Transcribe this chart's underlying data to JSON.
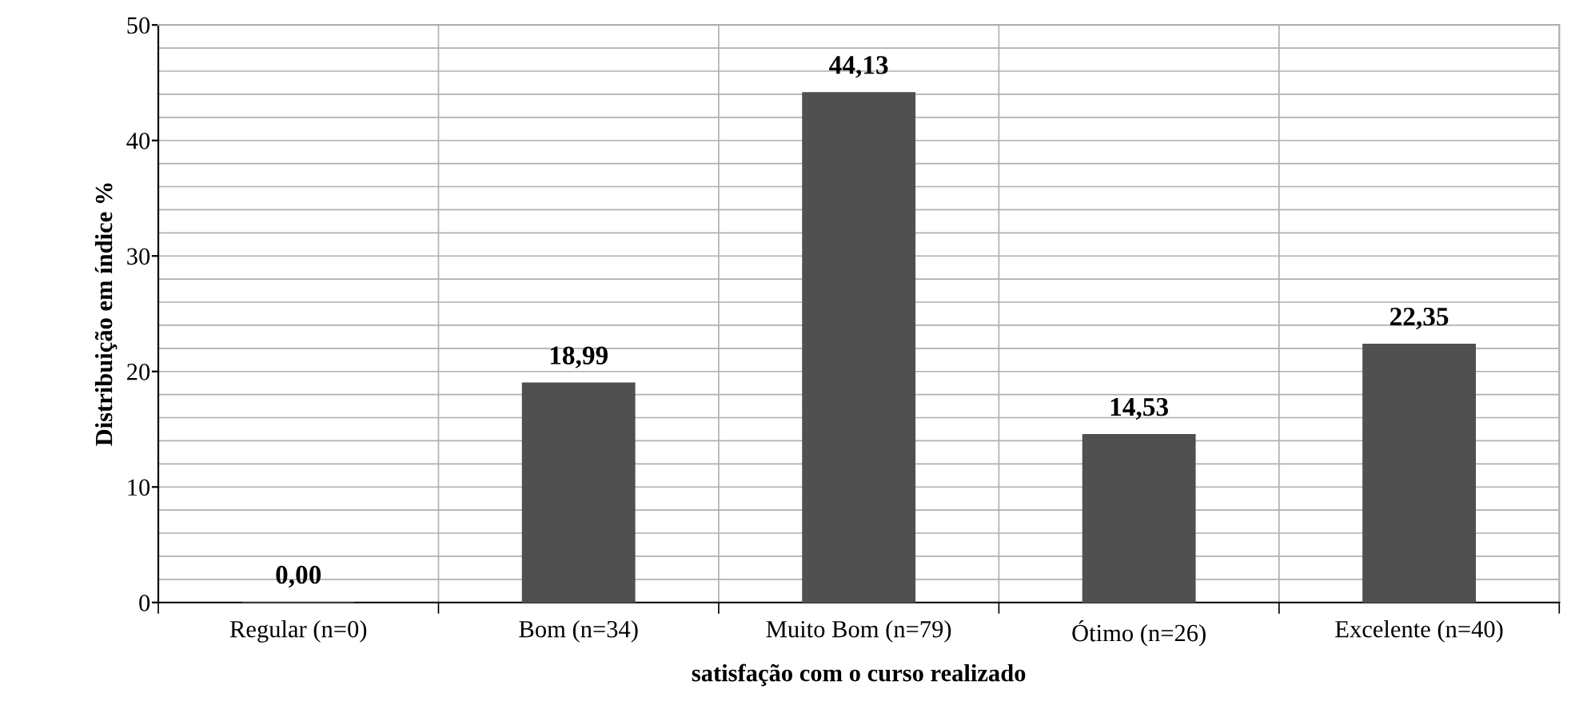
{
  "chart_data": {
    "type": "bar",
    "categories": [
      "Regular (n=0)",
      "Bom (n=34)",
      "Muito Bom (n=79)",
      "Ótimo (n=26)",
      "Excelente (n=40)"
    ],
    "values": [
      0.0,
      18.99,
      44.13,
      14.53,
      22.35
    ],
    "value_labels": [
      "0,00",
      "18,99",
      "44,13",
      "14,53",
      "22,35"
    ],
    "color": "#505050",
    "xlabel": "satisfação com o curso realizado",
    "ylabel": "Distribuição em índice %",
    "ylim": [
      0,
      50
    ],
    "yticks": [
      0,
      {
        "value": 2,
        "label": null
      },
      {
        "value": 4,
        "label": null
      },
      {
        "value": 6,
        "label": null
      },
      {
        "value": 8,
        "label": null
      },
      10,
      {
        "value": 12,
        "label": null
      },
      {
        "value": 14,
        "label": null
      },
      {
        "value": 16,
        "label": null
      },
      {
        "value": 18,
        "label": null
      },
      20,
      {
        "value": 22,
        "label": null
      },
      {
        "value": 24,
        "label": null
      },
      {
        "value": 26,
        "label": null
      },
      {
        "value": 28,
        "label": null
      },
      30,
      {
        "value": 32,
        "label": null
      },
      {
        "value": 34,
        "label": null
      },
      {
        "value": 36,
        "label": null
      },
      {
        "value": 38,
        "label": null
      },
      40,
      {
        "value": 42,
        "label": null
      },
      {
        "value": 44,
        "label": null
      },
      {
        "value": 46,
        "label": null
      },
      {
        "value": 48,
        "label": null
      },
      50
    ],
    "grid": true
  }
}
